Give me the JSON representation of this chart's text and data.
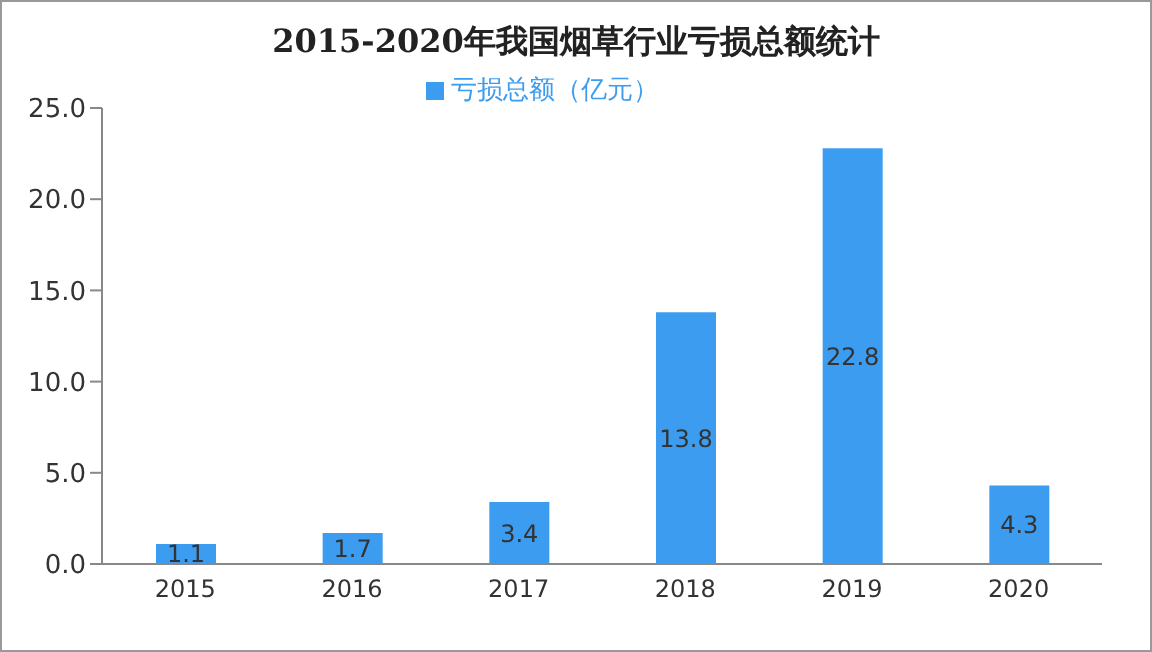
{
  "chart_data": {
    "type": "bar",
    "title": "2015-2020年我国烟草行业亏损总额统计",
    "categories": [
      "2015",
      "2016",
      "2017",
      "2018",
      "2019",
      "2020"
    ],
    "series": [
      {
        "name": "亏损总额（亿元）",
        "color": "#3c9cf0",
        "values": [
          1.1,
          1.7,
          3.4,
          13.8,
          22.8,
          4.3
        ]
      }
    ],
    "ylim": [
      0,
      25
    ],
    "yticks": [
      {
        "value": 0,
        "label": "0.0"
      },
      {
        "value": 5,
        "label": "5.0"
      },
      {
        "value": 10,
        "label": "10.0"
      },
      {
        "value": 15,
        "label": "15.0"
      },
      {
        "value": 20,
        "label": "20.0"
      },
      {
        "value": 25,
        "label": "25.0"
      }
    ],
    "data_labels": true,
    "legend": "top",
    "grid": false
  }
}
